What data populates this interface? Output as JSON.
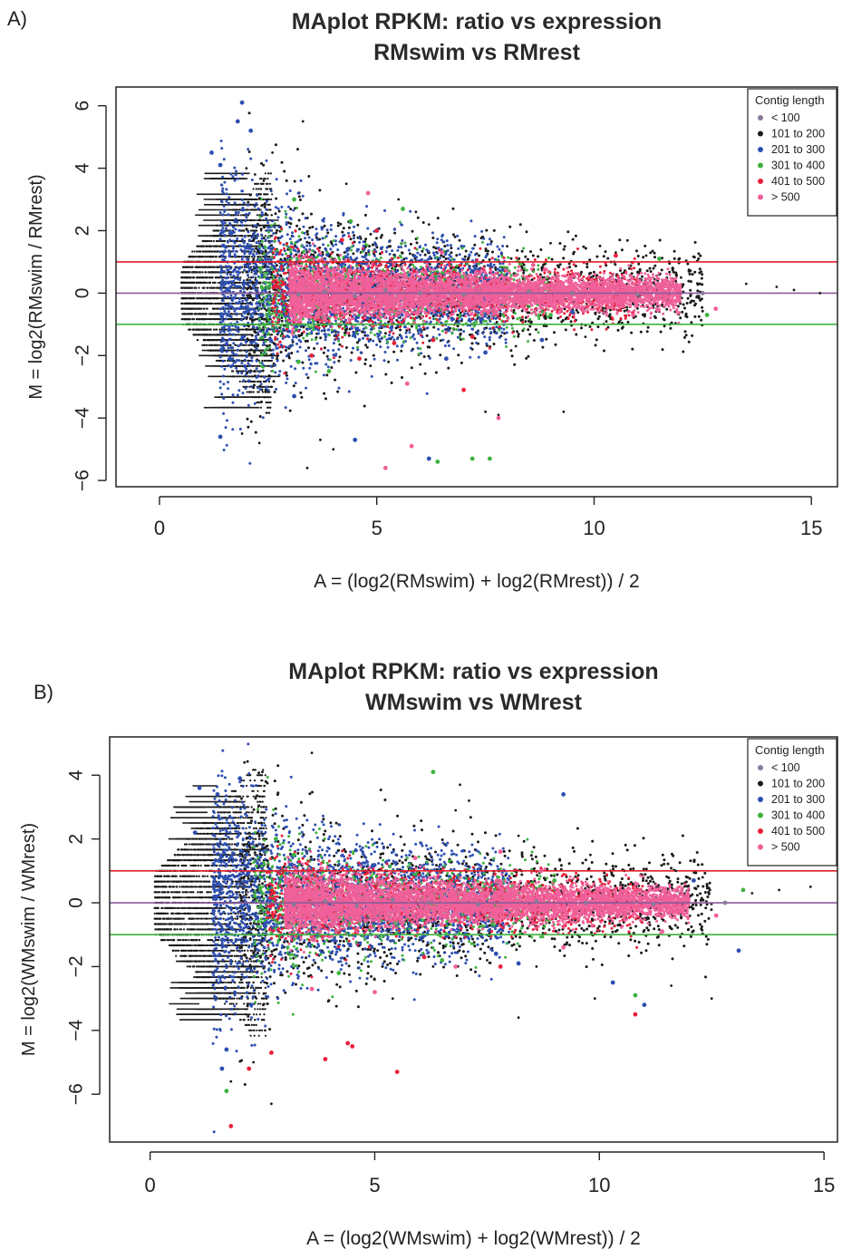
{
  "panels": [
    {
      "letter": "A)",
      "chart_data": {
        "type": "scatter",
        "title": "MAplot RPKM: ratio vs expression",
        "subtitle": "RMswim vs RMrest",
        "xlabel": "A = (log2(RMswim) + log2(RMrest)) / 2",
        "ylabel": "M = log2(RMswim / RMrest)",
        "xlim": [
          -1,
          15.6
        ],
        "ylim": [
          -6.2,
          6.6
        ],
        "xticks": [
          0,
          5,
          10,
          15
        ],
        "yticks": [
          -6,
          -4,
          -2,
          0,
          2,
          4,
          6
        ],
        "hlines": [
          {
            "y": 1,
            "color": "#e0202a"
          },
          {
            "y": 0,
            "color": "#8a5c9a"
          },
          {
            "y": -1,
            "color": "#3fb23f"
          }
        ],
        "legend": {
          "title": "Contig length",
          "placement": "top-right",
          "entries": [
            {
              "label": "< 100",
              "color": "#8a7a9a"
            },
            {
              "label": "101 to 200",
              "color": "#1a1a1a"
            },
            {
              "label": "201 to 300",
              "color": "#2d4fb0"
            },
            {
              "label": "301 to 400",
              "color": "#3fb23f"
            },
            {
              "label": "401 to 500",
              "color": "#e8203a"
            },
            {
              "label": "> 500",
              "color": "#f0609a"
            }
          ]
        },
        "series": [
          {
            "name": "< 100",
            "color": "#8a7a9a",
            "points": [
              [
                3.2,
                -0.05
              ],
              [
                3.8,
                0.05
              ],
              [
                4.5,
                -0.1
              ],
              [
                5.2,
                0.1
              ],
              [
                6.0,
                0.0
              ],
              [
                7.0,
                -0.05
              ],
              [
                8.5,
                0.05
              ],
              [
                9.5,
                0.0
              ],
              [
                11.0,
                -0.05
              ],
              [
                12.5,
                0.0
              ]
            ]
          },
          {
            "name": "101 to 200",
            "color": "#1a1a1a",
            "points": [
              [
                2.0,
                4.0
              ],
              [
                2.2,
                3.8
              ],
              [
                2.4,
                3.6
              ],
              [
                1.9,
                -4.5
              ],
              [
                2.3,
                -4.8
              ],
              [
                2.6,
                4.5
              ],
              [
                3.3,
                5.5
              ],
              [
                4.3,
                3.5
              ],
              [
                5.5,
                3.0
              ],
              [
                5.9,
                2.6
              ],
              [
                6.2,
                2.2
              ],
              [
                3.7,
                -4.7
              ],
              [
                4.0,
                -5.0
              ],
              [
                3.4,
                -5.6
              ],
              [
                9.3,
                -3.8
              ],
              [
                7.5,
                -3.8
              ],
              [
                7.8,
                -3.9
              ],
              [
                10.5,
                1.3
              ],
              [
                11.2,
                1.2
              ],
              [
                12.0,
                0.5
              ],
              [
                13.5,
                0.3
              ],
              [
                14.2,
                0.2
              ],
              [
                14.6,
                0.1
              ],
              [
                15.2,
                0.0
              ],
              [
                6.8,
                1.8
              ],
              [
                8.0,
                1.5
              ],
              [
                9.0,
                1.6
              ],
              [
                7.2,
                -1.8
              ],
              [
                8.2,
                -1.7
              ],
              [
                9.8,
                -1.4
              ]
            ]
          },
          {
            "name": "201 to 300",
            "color": "#2d4fb0",
            "points": [
              [
                1.9,
                6.1
              ],
              [
                1.8,
                5.5
              ],
              [
                2.1,
                5.2
              ],
              [
                1.2,
                4.5
              ],
              [
                1.4,
                4.1
              ],
              [
                4.5,
                -4.7
              ],
              [
                6.2,
                -5.3
              ],
              [
                1.4,
                -4.6
              ],
              [
                3.1,
                -3.3
              ],
              [
                6.6,
                -2.1
              ],
              [
                7.5,
                -1.9
              ],
              [
                8.8,
                -1.5
              ],
              [
                9.5,
                -0.6
              ]
            ]
          },
          {
            "name": "301 to 400",
            "color": "#3fb23f",
            "points": [
              [
                3.1,
                3.0
              ],
              [
                4.4,
                2.3
              ],
              [
                5.6,
                2.7
              ],
              [
                7.6,
                -5.3
              ],
              [
                7.2,
                -5.3
              ],
              [
                6.4,
                -5.4
              ],
              [
                9.0,
                -0.7
              ],
              [
                12.6,
                -0.7
              ],
              [
                11.5,
                1.1
              ],
              [
                3.9,
                -2.5
              ],
              [
                3.2,
                -2.2
              ]
            ]
          },
          {
            "name": "401 to 500",
            "color": "#e8203a",
            "points": [
              [
                3.5,
                -2.0
              ],
              [
                4.6,
                -2.1
              ],
              [
                5.4,
                -1.6
              ],
              [
                6.3,
                -1.5
              ],
              [
                7.0,
                -3.1
              ],
              [
                7.2,
                -1.4
              ],
              [
                10.5,
                1.2
              ],
              [
                4.2,
                1.7
              ],
              [
                5.0,
                2.0
              ]
            ]
          },
          {
            "name": "> 500",
            "color": "#f0609a",
            "points": [
              [
                4.8,
                3.2
              ],
              [
                5.8,
                -4.9
              ],
              [
                5.2,
                -5.6
              ],
              [
                5.7,
                -2.9
              ],
              [
                7.8,
                -4.0
              ],
              [
                9.1,
                -0.5
              ],
              [
                10.9,
                -0.7
              ],
              [
                12.8,
                -0.5
              ],
              [
                8.6,
                0.9
              ],
              [
                6.5,
                1.3
              ]
            ]
          }
        ]
      }
    },
    {
      "letter": "B)",
      "chart_data": {
        "type": "scatter",
        "title": "MAplot RPKM: ratio vs expression",
        "subtitle": "WMswim vs WMrest",
        "xlabel": "A = (log2(WMswim) + log2(WMrest)) / 2",
        "ylabel": "M = log2(WMswim / WMrest)",
        "xlim": [
          -0.9,
          15.3
        ],
        "ylim": [
          -7.5,
          5.2
        ],
        "xticks": [
          0,
          5,
          10,
          15
        ],
        "yticks": [
          -6,
          -4,
          -2,
          0,
          2,
          4
        ],
        "hlines": [
          {
            "y": 1,
            "color": "#e0202a"
          },
          {
            "y": 0,
            "color": "#8a5c9a"
          },
          {
            "y": -1,
            "color": "#3fb23f"
          }
        ],
        "legend": {
          "title": "Contig length",
          "placement": "top-right",
          "entries": [
            {
              "label": "< 100",
              "color": "#8a7a9a"
            },
            {
              "label": "101 to 200",
              "color": "#1a1a1a"
            },
            {
              "label": "201 to 300",
              "color": "#2d4fb0"
            },
            {
              "label": "301 to 400",
              "color": "#3fb23f"
            },
            {
              "label": "401 to 500",
              "color": "#e8203a"
            },
            {
              "label": "> 500",
              "color": "#f0609a"
            }
          ]
        },
        "series": [
          {
            "name": "< 100",
            "color": "#8a7a9a",
            "points": [
              [
                3.2,
                -0.05
              ],
              [
                3.9,
                0.05
              ],
              [
                4.6,
                -0.1
              ],
              [
                5.4,
                0.1
              ],
              [
                6.2,
                0.0
              ],
              [
                7.3,
                -0.05
              ],
              [
                8.6,
                0.05
              ],
              [
                9.7,
                0.0
              ],
              [
                11.2,
                -0.05
              ],
              [
                12.8,
                0.0
              ]
            ]
          },
          {
            "name": "101 to 200",
            "color": "#1a1a1a",
            "points": [
              [
                2.1,
                4.4
              ],
              [
                2.5,
                4.1
              ],
              [
                3.6,
                4.7
              ],
              [
                1.8,
                -5.6
              ],
              [
                2.7,
                -6.3
              ],
              [
                2.3,
                -5.0
              ],
              [
                6.9,
                3.7
              ],
              [
                7.1,
                3.2
              ],
              [
                6.8,
                2.9
              ],
              [
                8.2,
                2.1
              ],
              [
                9.8,
                1.5
              ],
              [
                11.7,
                1.0
              ],
              [
                12.3,
                0.8
              ],
              [
                14.7,
                0.5
              ],
              [
                13.4,
                0.3
              ],
              [
                14.0,
                0.4
              ],
              [
                8.6,
                -2.0
              ],
              [
                9.9,
                -3.0
              ],
              [
                12.5,
                -3.0
              ],
              [
                8.2,
                -3.6
              ],
              [
                11.6,
                -2.6
              ],
              [
                5.4,
                -3.0
              ],
              [
                6.3,
                -2.0
              ],
              [
                7.5,
                -1.8
              ]
            ]
          },
          {
            "name": "201 to 300",
            "color": "#2d4fb0",
            "points": [
              [
                1.1,
                3.6
              ],
              [
                1.5,
                3.4
              ],
              [
                1.0,
                2.2
              ],
              [
                1.7,
                -4.6
              ],
              [
                1.6,
                -5.2
              ],
              [
                2.0,
                3.9
              ],
              [
                7.7,
                -1.6
              ],
              [
                8.2,
                -1.9
              ],
              [
                10.3,
                -2.5
              ],
              [
                11.0,
                -3.2
              ],
              [
                13.1,
                -1.5
              ],
              [
                9.2,
                3.4
              ],
              [
                12.1,
                0.7
              ]
            ]
          },
          {
            "name": "301 to 400",
            "color": "#3fb23f",
            "points": [
              [
                1.7,
                -5.9
              ],
              [
                2.8,
                2.0
              ],
              [
                3.2,
                1.5
              ],
              [
                6.3,
                4.1
              ],
              [
                6.5,
                -1.8
              ],
              [
                10.8,
                -2.9
              ],
              [
                9.0,
                0.7
              ],
              [
                13.2,
                0.4
              ],
              [
                4.2,
                -2.2
              ]
            ]
          },
          {
            "name": "401 to 500",
            "color": "#e8203a",
            "points": [
              [
                1.8,
                -7.0
              ],
              [
                2.2,
                -5.2
              ],
              [
                2.7,
                -4.7
              ],
              [
                3.9,
                -4.9
              ],
              [
                4.4,
                -4.4
              ],
              [
                4.5,
                -4.5
              ],
              [
                5.5,
                -5.3
              ],
              [
                7.8,
                -2.0
              ],
              [
                10.8,
                -3.5
              ],
              [
                6.1,
                -1.7
              ]
            ]
          },
          {
            "name": "> 500",
            "color": "#f0609a",
            "points": [
              [
                3.6,
                -2.7
              ],
              [
                5.0,
                -2.8
              ],
              [
                6.8,
                -2.0
              ],
              [
                7.8,
                1.6
              ],
              [
                9.2,
                -1.4
              ],
              [
                11.4,
                -0.9
              ],
              [
                12.6,
                -0.4
              ],
              [
                8.7,
                1.0
              ],
              [
                5.9,
                1.4
              ]
            ]
          }
        ]
      }
    }
  ]
}
